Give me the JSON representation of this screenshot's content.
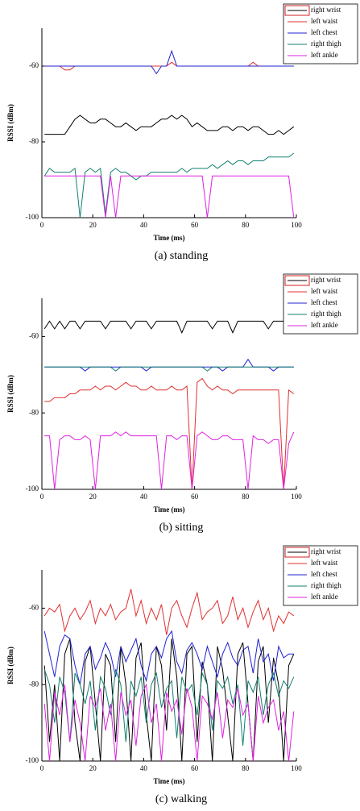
{
  "chart_data": [
    {
      "type": "line",
      "caption": "(a)  standing",
      "xlabel": "Time (ms)",
      "ylabel": "RSSI (dBm)",
      "xlim": [
        0,
        100
      ],
      "ylim": [
        -100,
        -50
      ],
      "xticks": [
        0,
        20,
        40,
        60,
        80,
        100
      ],
      "yticks": [
        -100,
        -80,
        -60
      ],
      "x": [
        1,
        3,
        5,
        7,
        9,
        11,
        13,
        15,
        17,
        19,
        21,
        23,
        25,
        27,
        29,
        31,
        33,
        35,
        37,
        39,
        41,
        43,
        45,
        47,
        49,
        51,
        53,
        55,
        57,
        59,
        61,
        63,
        65,
        67,
        69,
        71,
        73,
        75,
        77,
        79,
        81,
        83,
        85,
        87,
        89,
        91,
        93,
        95,
        97,
        99
      ],
      "series": [
        {
          "name": "right wrist",
          "color": "#000000",
          "values": [
            -78,
            -78,
            -78,
            -78,
            -78,
            -76,
            -74,
            -73,
            -74,
            -75,
            -75,
            -74,
            -74,
            -75,
            -76,
            -76,
            -75,
            -76,
            -77,
            -76,
            -76,
            -76,
            -75,
            -74,
            -74,
            -73,
            -74,
            -73,
            -74,
            -76,
            -75,
            -76,
            -77,
            -77,
            -77,
            -76,
            -76,
            -77,
            -76,
            -76,
            -77,
            -76,
            -76,
            -77,
            -78,
            -78,
            -77,
            -78,
            -77,
            -76
          ]
        },
        {
          "name": "left waist",
          "color": "#e03030",
          "values": [
            -60,
            -60,
            -60,
            -60,
            -61,
            -61,
            -60,
            -60,
            -60,
            -60,
            -60,
            -60,
            -60,
            -60,
            -60,
            -60,
            -60,
            -60,
            -60,
            -60,
            -60,
            -60,
            -60,
            -60,
            -60,
            -59,
            -60,
            -60,
            -60,
            -60,
            -60,
            -60,
            -60,
            -60,
            -60,
            -60,
            -60,
            -60,
            -60,
            -60,
            -60,
            -59,
            -60,
            -60,
            -60,
            -60,
            -60,
            -60,
            -60,
            -60
          ]
        },
        {
          "name": "left chest",
          "color": "#2020d0",
          "values": [
            -60,
            -60,
            -60,
            -60,
            -60,
            -60,
            -60,
            -60,
            -60,
            -60,
            -60,
            -60,
            -60,
            -60,
            -60,
            -60,
            -60,
            -60,
            -60,
            -60,
            -60,
            -60,
            -62,
            -60,
            -60,
            -56,
            -60,
            -60,
            -60,
            -60,
            -60,
            -60,
            -60,
            -60,
            -60,
            -60,
            -60,
            -60,
            -60,
            -60,
            -60,
            -60,
            -60,
            -60,
            -60,
            -60,
            -60,
            -60,
            -60,
            -60
          ]
        },
        {
          "name": "right thigh",
          "color": "#108070",
          "values": [
            -89,
            -87,
            -88,
            -88,
            -88,
            -88,
            -87,
            -100,
            -88,
            -87,
            -88,
            -87,
            -99,
            -88,
            -87,
            -88,
            -88,
            -89,
            -90,
            -89,
            -89,
            -88,
            -88,
            -88,
            -88,
            -88,
            -88,
            -87,
            -88,
            -87,
            -87,
            -87,
            -87,
            -86,
            -87,
            -86,
            -85,
            -86,
            -85,
            -85,
            -86,
            -85,
            -85,
            -85,
            -84,
            -84,
            -84,
            -84,
            -84,
            -83
          ]
        },
        {
          "name": "left ankle",
          "color": "#e020e0",
          "values": [
            -89,
            -89,
            -89,
            -89,
            -89,
            -89,
            -89,
            -89,
            -89,
            -89,
            -89,
            -89,
            -100,
            -89,
            -100,
            -89,
            -89,
            -89,
            -89,
            -89,
            -89,
            -89,
            -89,
            -89,
            -89,
            -89,
            -89,
            -89,
            -89,
            -89,
            -89,
            -89,
            -100,
            -89,
            -89,
            -89,
            -89,
            -89,
            -89,
            -89,
            -89,
            -89,
            -89,
            -89,
            -89,
            -89,
            -89,
            -89,
            -89,
            -100
          ]
        }
      ]
    },
    {
      "type": "line",
      "caption": "(b)  sitting",
      "xlabel": "Time (ms)",
      "ylabel": "RSSI (dBm)",
      "xlim": [
        0,
        100
      ],
      "ylim": [
        -100,
        -50
      ],
      "xticks": [
        0,
        20,
        40,
        60,
        80,
        100
      ],
      "yticks": [
        -100,
        -80,
        -60
      ],
      "x": [
        1,
        3,
        5,
        7,
        9,
        11,
        13,
        15,
        17,
        19,
        21,
        23,
        25,
        27,
        29,
        31,
        33,
        35,
        37,
        39,
        41,
        43,
        45,
        47,
        49,
        51,
        53,
        55,
        57,
        59,
        61,
        63,
        65,
        67,
        69,
        71,
        73,
        75,
        77,
        79,
        81,
        83,
        85,
        87,
        89,
        91,
        93,
        95,
        97,
        99
      ],
      "series": [
        {
          "name": "right wrist",
          "color": "#000000",
          "values": [
            -58,
            -56,
            -58,
            -56,
            -58,
            -56,
            -56,
            -58,
            -56,
            -56,
            -56,
            -56,
            -58,
            -56,
            -56,
            -56,
            -56,
            -58,
            -56,
            -56,
            -56,
            -58,
            -56,
            -56,
            -56,
            -56,
            -56,
            -59,
            -56,
            -56,
            -56,
            -56,
            -56,
            -58,
            -56,
            -56,
            -56,
            -59,
            -56,
            -56,
            -56,
            -56,
            -56,
            -56,
            -58,
            -56,
            -56,
            -56,
            -56,
            -56
          ]
        },
        {
          "name": "left waist",
          "color": "#e03030",
          "values": [
            -77,
            -77,
            -76,
            -76,
            -76,
            -75,
            -75,
            -74,
            -74,
            -74,
            -73,
            -74,
            -73,
            -73,
            -74,
            -73,
            -72,
            -73,
            -73,
            -74,
            -74,
            -73,
            -74,
            -74,
            -74,
            -73,
            -74,
            -74,
            -73,
            -100,
            -72,
            -71,
            -73,
            -74,
            -73,
            -74,
            -74,
            -75,
            -74,
            -74,
            -74,
            -74,
            -74,
            -74,
            -74,
            -74,
            -74,
            -100,
            -74,
            -75
          ]
        },
        {
          "name": "left chest",
          "color": "#2020d0",
          "values": [
            -68,
            -68,
            -68,
            -68,
            -68,
            -68,
            -68,
            -68,
            -69,
            -68,
            -68,
            -68,
            -68,
            -68,
            -68,
            -68,
            -68,
            -68,
            -68,
            -68,
            -69,
            -68,
            -68,
            -68,
            -68,
            -68,
            -68,
            -68,
            -68,
            -68,
            -68,
            -68,
            -68,
            -68,
            -68,
            -69,
            -68,
            -68,
            -68,
            -68,
            -66,
            -68,
            -68,
            -68,
            -68,
            -69,
            -68,
            -68,
            -68,
            -68
          ]
        },
        {
          "name": "right thigh",
          "color": "#108070",
          "values": [
            -68,
            -68,
            -68,
            -68,
            -68,
            -68,
            -68,
            -68,
            -68,
            -68,
            -68,
            -68,
            -68,
            -68,
            -69,
            -68,
            -68,
            -68,
            -68,
            -68,
            -68,
            -68,
            -68,
            -68,
            -68,
            -68,
            -68,
            -68,
            -68,
            -68,
            -68,
            -68,
            -69,
            -68,
            -68,
            -68,
            -68,
            -68,
            -68,
            -68,
            -68,
            -68,
            -68,
            -68,
            -68,
            -68,
            -68,
            -68,
            -68,
            -68
          ]
        },
        {
          "name": "left ankle",
          "color": "#e020e0",
          "values": [
            -86,
            -86,
            -100,
            -87,
            -86,
            -86,
            -87,
            -87,
            -86,
            -87,
            -100,
            -86,
            -86,
            -86,
            -85,
            -86,
            -85,
            -86,
            -86,
            -86,
            -86,
            -86,
            -86,
            -100,
            -86,
            -86,
            -87,
            -86,
            -86,
            -100,
            -86,
            -85,
            -86,
            -87,
            -87,
            -86,
            -86,
            -87,
            -87,
            -87,
            -100,
            -86,
            -87,
            -87,
            -88,
            -87,
            -87,
            -100,
            -88,
            -85
          ]
        }
      ]
    },
    {
      "type": "line",
      "caption": "(c)  walking",
      "xlabel": "Time (ms)",
      "ylabel": "RSSI (dBm)",
      "xlim": [
        0,
        100
      ],
      "ylim": [
        -100,
        -50
      ],
      "xticks": [
        0,
        20,
        40,
        60,
        80,
        100
      ],
      "yticks": [
        -100,
        -80,
        -60
      ],
      "x": [
        1,
        3,
        5,
        7,
        9,
        11,
        13,
        15,
        17,
        19,
        21,
        23,
        25,
        27,
        29,
        31,
        33,
        35,
        37,
        39,
        41,
        43,
        45,
        47,
        49,
        51,
        53,
        55,
        57,
        59,
        61,
        63,
        65,
        67,
        69,
        71,
        73,
        75,
        77,
        79,
        81,
        83,
        85,
        87,
        89,
        91,
        93,
        95,
        97,
        99
      ],
      "series": [
        {
          "name": "right wrist",
          "color": "#000000",
          "values": [
            -75,
            -95,
            -80,
            -100,
            -72,
            -68,
            -90,
            -100,
            -74,
            -70,
            -85,
            -100,
            -72,
            -75,
            -95,
            -70,
            -80,
            -100,
            -73,
            -69,
            -88,
            -100,
            -70,
            -75,
            -92,
            -68,
            -78,
            -100,
            -72,
            -70,
            -95,
            -74,
            -80,
            -100,
            -70,
            -76,
            -88,
            -100,
            -72,
            -69,
            -85,
            -100,
            -74,
            -70,
            -90,
            -73,
            -80,
            -100,
            -75,
            -72
          ]
        },
        {
          "name": "left waist",
          "color": "#e03030",
          "values": [
            -62,
            -60,
            -61,
            -59,
            -66,
            -62,
            -60,
            -63,
            -61,
            -58,
            -64,
            -60,
            -62,
            -59,
            -63,
            -61,
            -60,
            -55,
            -62,
            -58,
            -64,
            -60,
            -63,
            -59,
            -67,
            -60,
            -58,
            -62,
            -65,
            -60,
            -56,
            -63,
            -61,
            -60,
            -58,
            -64,
            -62,
            -57,
            -63,
            -60,
            -65,
            -61,
            -58,
            -63,
            -60,
            -66,
            -62,
            -64,
            -61,
            -62
          ]
        },
        {
          "name": "left chest",
          "color": "#2020d0",
          "values": [
            -66,
            -72,
            -78,
            -70,
            -67,
            -68,
            -75,
            -80,
            -72,
            -70,
            -76,
            -73,
            -69,
            -72,
            -78,
            -70,
            -74,
            -71,
            -68,
            -75,
            -79,
            -72,
            -70,
            -73,
            -68,
            -66,
            -74,
            -77,
            -71,
            -69,
            -72,
            -76,
            -70,
            -74,
            -78,
            -72,
            -69,
            -73,
            -75,
            -71,
            -70,
            -77,
            -68,
            -74,
            -72,
            -79,
            -70,
            -73,
            -72,
            -72
          ]
        },
        {
          "name": "right thigh",
          "color": "#108070",
          "values": [
            -76,
            -80,
            -90,
            -78,
            -82,
            -95,
            -77,
            -80,
            -85,
            -79,
            -92,
            -78,
            -81,
            -88,
            -76,
            -80,
            -95,
            -79,
            -83,
            -78,
            -90,
            -80,
            -77,
            -86,
            -81,
            -79,
            -94,
            -78,
            -82,
            -80,
            -88,
            -77,
            -80,
            -92,
            -79,
            -81,
            -78,
            -85,
            -80,
            -96,
            -79,
            -82,
            -78,
            -88,
            -80,
            -77,
            -83,
            -79,
            -81,
            -78
          ]
        },
        {
          "name": "left ankle",
          "color": "#e020e0",
          "values": [
            -85,
            -100,
            -82,
            -88,
            -80,
            -95,
            -84,
            -90,
            -100,
            -83,
            -86,
            -81,
            -92,
            -85,
            -100,
            -82,
            -88,
            -84,
            -96,
            -83,
            -80,
            -90,
            -85,
            -100,
            -82,
            -87,
            -84,
            -93,
            -81,
            -86,
            -100,
            -83,
            -85,
            -89,
            -82,
            -94,
            -84,
            -86,
            -81,
            -88,
            -85,
            -100,
            -83,
            -90,
            -86,
            -84,
            -92,
            -87,
            -100,
            -87
          ]
        }
      ]
    }
  ]
}
